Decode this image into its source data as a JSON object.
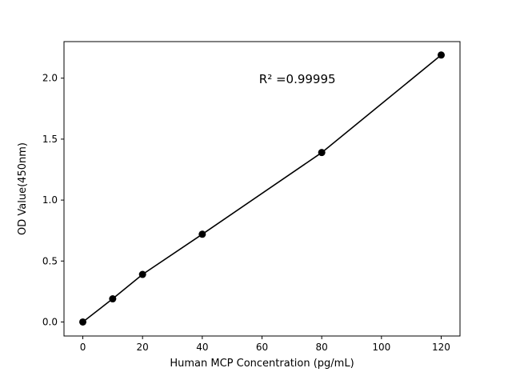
{
  "chart_data": {
    "type": "scatter",
    "title": "",
    "xlabel": "Human MCP Concentration (pg/mL)",
    "ylabel": "OD Value(450nm)",
    "x": [
      0,
      10,
      20,
      40,
      80,
      120
    ],
    "y": [
      0.0,
      0.19,
      0.39,
      0.72,
      1.39,
      2.19
    ],
    "fit_line": true,
    "xlim": [
      -6.3,
      126.3
    ],
    "ylim": [
      -0.115,
      2.3
    ],
    "xticks": [
      0,
      20,
      40,
      60,
      80,
      100,
      120
    ],
    "xtick_labels": [
      "0",
      "20",
      "40",
      "60",
      "80",
      "100",
      "120"
    ],
    "yticks": [
      0.0,
      0.5,
      1.0,
      1.5,
      2.0
    ],
    "ytick_labels": [
      "0.0",
      "0.5",
      "1.0",
      "1.5",
      "2.0"
    ],
    "annotation": {
      "text": "R² =0.99995",
      "x": 59,
      "y": 1.96
    },
    "legend": "none",
    "grid": false,
    "marker_color": "#000000",
    "line_color": "#000000",
    "background": "#ffffff"
  }
}
